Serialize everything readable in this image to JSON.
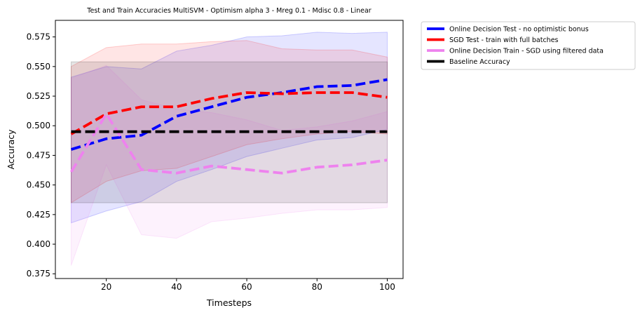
{
  "chart_data": {
    "type": "line",
    "title": "Test and Train Accuracies MultiSVM - Optimism alpha 3 - Mreg 0.1 - Mdisc 0.8 - Linear",
    "xlabel": "Timesteps",
    "ylabel": "Accuracy",
    "xlim": [
      5.5,
      104.5
    ],
    "ylim": [
      0.371,
      0.589
    ],
    "xticks": [
      20,
      40,
      60,
      80,
      100
    ],
    "xtick_labels": [
      "20",
      "40",
      "60",
      "80",
      "100"
    ],
    "yticks": [
      0.375,
      0.4,
      0.425,
      0.45,
      0.475,
      0.5,
      0.525,
      0.55,
      0.575
    ],
    "ytick_labels": [
      "0.375",
      "0.400",
      "0.425",
      "0.450",
      "0.475",
      "0.500",
      "0.525",
      "0.550",
      "0.575"
    ],
    "grid": false,
    "legend_position": "outside-top-right",
    "x": [
      10,
      20,
      30,
      40,
      50,
      60,
      70,
      80,
      90,
      100
    ],
    "series": [
      {
        "name": "Online Decision Test - no optimistic bonus",
        "color": "#0000ff",
        "values": [
          0.48,
          0.489,
          0.492,
          0.508,
          0.516,
          0.524,
          0.528,
          0.533,
          0.534,
          0.539
        ],
        "band_lower": [
          0.418,
          0.428,
          0.436,
          0.453,
          0.463,
          0.474,
          0.481,
          0.488,
          0.49,
          0.497
        ],
        "band_upper": [
          0.541,
          0.55,
          0.548,
          0.563,
          0.568,
          0.575,
          0.576,
          0.579,
          0.578,
          0.579
        ]
      },
      {
        "name": "SGD Test - train with full batches",
        "color": "#ff0000",
        "values": [
          0.493,
          0.51,
          0.516,
          0.516,
          0.523,
          0.528,
          0.527,
          0.528,
          0.528,
          0.524
        ],
        "band_lower": [
          0.435,
          0.453,
          0.462,
          0.464,
          0.474,
          0.484,
          0.489,
          0.493,
          0.495,
          0.493
        ],
        "band_upper": [
          0.55,
          0.566,
          0.569,
          0.569,
          0.571,
          0.572,
          0.565,
          0.564,
          0.564,
          0.558
        ]
      },
      {
        "name": "Online Decision Train - SGD using filtered data",
        "color": "#ee82ee",
        "values": [
          0.461,
          0.51,
          0.463,
          0.46,
          0.466,
          0.463,
          0.46,
          0.465,
          0.467,
          0.471
        ],
        "band_lower": [
          0.382,
          0.467,
          0.408,
          0.405,
          0.419,
          0.422,
          0.426,
          0.429,
          0.429,
          0.431
        ],
        "band_upper": [
          0.54,
          0.551,
          0.522,
          0.514,
          0.511,
          0.505,
          0.496,
          0.499,
          0.504,
          0.512
        ]
      },
      {
        "name": "Baseline Accuracy",
        "color": "#000000",
        "values": [
          0.495,
          0.495,
          0.495,
          0.495,
          0.495,
          0.495,
          0.495,
          0.495,
          0.495,
          0.495
        ],
        "band_lower": [
          0.435,
          0.435,
          0.435,
          0.435,
          0.435,
          0.435,
          0.435,
          0.435,
          0.435,
          0.435
        ],
        "band_upper": [
          0.554,
          0.554,
          0.554,
          0.554,
          0.554,
          0.554,
          0.554,
          0.554,
          0.554,
          0.554
        ]
      }
    ]
  }
}
